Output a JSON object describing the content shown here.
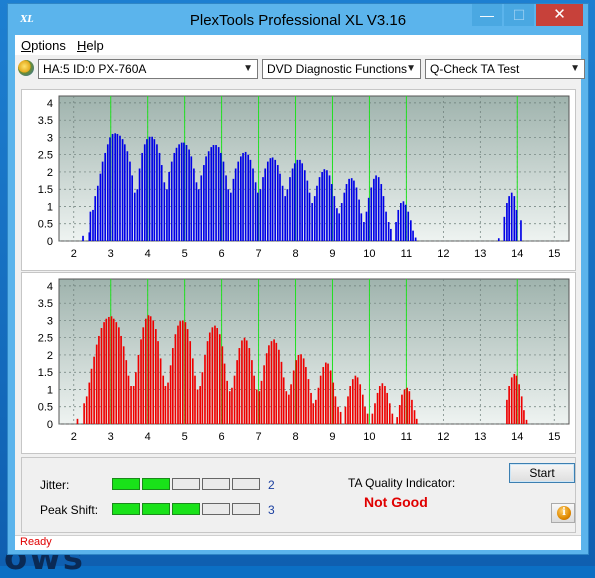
{
  "window": {
    "title": "PlexTools Professional XL V3.16",
    "icon_text": "XL",
    "minimize_glyph": "—",
    "maximize_glyph": "☐",
    "close_glyph": "✕"
  },
  "menu": [
    {
      "label": "Options",
      "accel": "O",
      "rest": "ptions"
    },
    {
      "label": "Help",
      "accel": "H",
      "rest": "elp"
    }
  ],
  "toolbar": {
    "drive": "HA:5 ID:0  PX-760A",
    "function": "DVD Diagnostic Functions",
    "test": "Q-Check TA Test"
  },
  "chart_data": [
    {
      "type": "bar",
      "name": "top",
      "color": "#0000e6",
      "x_ticks": [
        "2",
        "3",
        "4",
        "5",
        "6",
        "7",
        "8",
        "9",
        "10",
        "11",
        "12",
        "13",
        "14",
        "15"
      ],
      "y_ticks": [
        "0",
        "0.5",
        "1",
        "1.5",
        "2",
        "2.5",
        "3",
        "3.5",
        "4"
      ],
      "xlim": [
        1.6,
        15.4
      ],
      "ylim": [
        0,
        4.2
      ],
      "green_lines": [
        3,
        4,
        5,
        6,
        7,
        8,
        9,
        10,
        11,
        14
      ],
      "bars": [
        [
          2.25,
          0.15
        ],
        [
          2.42,
          0.25
        ],
        [
          2.45,
          0.85
        ],
        [
          2.52,
          0.9
        ],
        [
          2.58,
          1.3
        ],
        [
          2.65,
          1.6
        ],
        [
          2.72,
          1.95
        ],
        [
          2.78,
          2.3
        ],
        [
          2.85,
          2.55
        ],
        [
          2.92,
          2.8
        ],
        [
          2.98,
          3.0
        ],
        [
          3.05,
          3.1
        ],
        [
          3.12,
          3.12
        ],
        [
          3.18,
          3.1
        ],
        [
          3.25,
          3.05
        ],
        [
          3.32,
          2.95
        ],
        [
          3.38,
          2.8
        ],
        [
          3.45,
          2.6
        ],
        [
          3.52,
          2.3
        ],
        [
          3.58,
          1.9
        ],
        [
          3.65,
          1.4
        ],
        [
          3.72,
          1.5
        ],
        [
          3.78,
          2.1
        ],
        [
          3.85,
          2.55
        ],
        [
          3.92,
          2.8
        ],
        [
          3.98,
          2.95
        ],
        [
          4.05,
          3.02
        ],
        [
          4.12,
          3.02
        ],
        [
          4.18,
          2.95
        ],
        [
          4.25,
          2.8
        ],
        [
          4.32,
          2.55
        ],
        [
          4.38,
          2.2
        ],
        [
          4.45,
          1.7
        ],
        [
          4.52,
          1.5
        ],
        [
          4.58,
          2.0
        ],
        [
          4.65,
          2.3
        ],
        [
          4.72,
          2.55
        ],
        [
          4.78,
          2.7
        ],
        [
          4.85,
          2.8
        ],
        [
          4.92,
          2.85
        ],
        [
          4.98,
          2.85
        ],
        [
          5.05,
          2.78
        ],
        [
          5.12,
          2.65
        ],
        [
          5.18,
          2.45
        ],
        [
          5.25,
          2.1
        ],
        [
          5.32,
          1.7
        ],
        [
          5.38,
          1.5
        ],
        [
          5.45,
          1.9
        ],
        [
          5.52,
          2.2
        ],
        [
          5.58,
          2.45
        ],
        [
          5.65,
          2.6
        ],
        [
          5.72,
          2.72
        ],
        [
          5.78,
          2.78
        ],
        [
          5.85,
          2.78
        ],
        [
          5.92,
          2.72
        ],
        [
          5.98,
          2.55
        ],
        [
          6.05,
          2.3
        ],
        [
          6.12,
          1.9
        ],
        [
          6.18,
          1.5
        ],
        [
          6.25,
          1.4
        ],
        [
          6.32,
          1.8
        ],
        [
          6.38,
          2.1
        ],
        [
          6.45,
          2.3
        ],
        [
          6.52,
          2.45
        ],
        [
          6.58,
          2.55
        ],
        [
          6.65,
          2.58
        ],
        [
          6.72,
          2.5
        ],
        [
          6.78,
          2.35
        ],
        [
          6.85,
          2.1
        ],
        [
          6.92,
          1.7
        ],
        [
          6.98,
          1.4
        ],
        [
          7.05,
          1.5
        ],
        [
          7.12,
          1.85
        ],
        [
          7.18,
          2.1
        ],
        [
          7.25,
          2.3
        ],
        [
          7.32,
          2.4
        ],
        [
          7.38,
          2.42
        ],
        [
          7.45,
          2.35
        ],
        [
          7.52,
          2.2
        ],
        [
          7.58,
          1.95
        ],
        [
          7.65,
          1.6
        ],
        [
          7.72,
          1.3
        ],
        [
          7.78,
          1.5
        ],
        [
          7.85,
          1.85
        ],
        [
          7.92,
          2.1
        ],
        [
          7.98,
          2.25
        ],
        [
          8.05,
          2.35
        ],
        [
          8.12,
          2.35
        ],
        [
          8.18,
          2.25
        ],
        [
          8.25,
          2.05
        ],
        [
          8.32,
          1.75
        ],
        [
          8.38,
          1.4
        ],
        [
          8.45,
          1.1
        ],
        [
          8.52,
          1.3
        ],
        [
          8.58,
          1.6
        ],
        [
          8.65,
          1.85
        ],
        [
          8.72,
          2.0
        ],
        [
          8.78,
          2.08
        ],
        [
          8.85,
          2.05
        ],
        [
          8.92,
          1.9
        ],
        [
          8.98,
          1.65
        ],
        [
          9.05,
          1.3
        ],
        [
          9.12,
          0.95
        ],
        [
          9.18,
          0.8
        ],
        [
          9.25,
          1.1
        ],
        [
          9.32,
          1.4
        ],
        [
          9.38,
          1.65
        ],
        [
          9.45,
          1.8
        ],
        [
          9.52,
          1.82
        ],
        [
          9.58,
          1.75
        ],
        [
          9.65,
          1.55
        ],
        [
          9.72,
          1.2
        ],
        [
          9.78,
          0.8
        ],
        [
          9.85,
          0.55
        ],
        [
          9.92,
          0.85
        ],
        [
          9.98,
          1.25
        ],
        [
          10.05,
          1.55
        ],
        [
          10.12,
          1.8
        ],
        [
          10.18,
          1.9
        ],
        [
          10.25,
          1.85
        ],
        [
          10.32,
          1.65
        ],
        [
          10.38,
          1.3
        ],
        [
          10.45,
          0.85
        ],
        [
          10.52,
          0.55
        ],
        [
          10.58,
          0.35
        ],
        [
          10.72,
          0.55
        ],
        [
          10.78,
          0.9
        ],
        [
          10.85,
          1.1
        ],
        [
          10.92,
          1.15
        ],
        [
          10.98,
          1.05
        ],
        [
          11.05,
          0.85
        ],
        [
          11.12,
          0.6
        ],
        [
          11.18,
          0.3
        ],
        [
          11.25,
          0.1
        ],
        [
          13.5,
          0.08
        ],
        [
          13.65,
          0.7
        ],
        [
          13.72,
          1.1
        ],
        [
          13.78,
          1.3
        ],
        [
          13.85,
          1.4
        ],
        [
          13.92,
          1.3
        ],
        [
          13.98,
          0.9
        ],
        [
          14.1,
          0.6
        ]
      ]
    },
    {
      "type": "bar",
      "name": "bottom",
      "color": "#ee0000",
      "x_ticks": [
        "2",
        "3",
        "4",
        "5",
        "6",
        "7",
        "8",
        "9",
        "10",
        "11",
        "12",
        "13",
        "14",
        "15"
      ],
      "y_ticks": [
        "0",
        "0.5",
        "1",
        "1.5",
        "2",
        "2.5",
        "3",
        "3.5",
        "4"
      ],
      "xlim": [
        1.6,
        15.4
      ],
      "ylim": [
        0,
        4.2
      ],
      "green_lines": [
        3,
        4,
        5,
        6,
        7,
        8,
        9,
        10,
        11,
        14
      ],
      "bars": [
        [
          2.1,
          0.15
        ],
        [
          2.28,
          0.6
        ],
        [
          2.35,
          0.8
        ],
        [
          2.42,
          1.2
        ],
        [
          2.48,
          1.6
        ],
        [
          2.55,
          1.95
        ],
        [
          2.62,
          2.3
        ],
        [
          2.68,
          2.55
        ],
        [
          2.75,
          2.78
        ],
        [
          2.82,
          2.95
        ],
        [
          2.88,
          3.05
        ],
        [
          2.95,
          3.1
        ],
        [
          3.02,
          3.12
        ],
        [
          3.08,
          3.05
        ],
        [
          3.15,
          2.95
        ],
        [
          3.22,
          2.8
        ],
        [
          3.28,
          2.55
        ],
        [
          3.35,
          2.25
        ],
        [
          3.42,
          1.85
        ],
        [
          3.48,
          1.4
        ],
        [
          3.55,
          1.1
        ],
        [
          3.62,
          1.1
        ],
        [
          3.68,
          1.5
        ],
        [
          3.75,
          2.0
        ],
        [
          3.82,
          2.45
        ],
        [
          3.88,
          2.8
        ],
        [
          3.95,
          3.05
        ],
        [
          4.02,
          3.15
        ],
        [
          4.08,
          3.12
        ],
        [
          4.15,
          3.0
        ],
        [
          4.22,
          2.75
        ],
        [
          4.28,
          2.4
        ],
        [
          4.35,
          1.9
        ],
        [
          4.42,
          1.4
        ],
        [
          4.48,
          1.1
        ],
        [
          4.55,
          1.2
        ],
        [
          4.62,
          1.7
        ],
        [
          4.68,
          2.2
        ],
        [
          4.75,
          2.6
        ],
        [
          4.82,
          2.85
        ],
        [
          4.88,
          2.98
        ],
        [
          4.95,
          3.0
        ],
        [
          5.02,
          2.95
        ],
        [
          5.08,
          2.75
        ],
        [
          5.15,
          2.4
        ],
        [
          5.22,
          1.9
        ],
        [
          5.28,
          1.4
        ],
        [
          5.35,
          1.0
        ],
        [
          5.42,
          1.1
        ],
        [
          5.48,
          1.5
        ],
        [
          5.55,
          2.0
        ],
        [
          5.62,
          2.4
        ],
        [
          5.68,
          2.65
        ],
        [
          5.75,
          2.8
        ],
        [
          5.82,
          2.85
        ],
        [
          5.88,
          2.78
        ],
        [
          5.95,
          2.6
        ],
        [
          6.02,
          2.25
        ],
        [
          6.08,
          1.75
        ],
        [
          6.15,
          1.25
        ],
        [
          6.22,
          0.95
        ],
        [
          6.28,
          1.05
        ],
        [
          6.35,
          1.4
        ],
        [
          6.42,
          1.85
        ],
        [
          6.48,
          2.2
        ],
        [
          6.55,
          2.42
        ],
        [
          6.62,
          2.5
        ],
        [
          6.68,
          2.42
        ],
        [
          6.75,
          2.2
        ],
        [
          6.82,
          1.85
        ],
        [
          6.88,
          1.4
        ],
        [
          6.95,
          1.0
        ],
        [
          7.02,
          0.95
        ],
        [
          7.08,
          1.25
        ],
        [
          7.15,
          1.7
        ],
        [
          7.22,
          2.05
        ],
        [
          7.28,
          2.28
        ],
        [
          7.35,
          2.4
        ],
        [
          7.42,
          2.45
        ],
        [
          7.48,
          2.35
        ],
        [
          7.55,
          2.15
        ],
        [
          7.62,
          1.8
        ],
        [
          7.68,
          1.35
        ],
        [
          7.75,
          0.95
        ],
        [
          7.82,
          0.85
        ],
        [
          7.88,
          1.15
        ],
        [
          7.95,
          1.55
        ],
        [
          8.02,
          1.85
        ],
        [
          8.08,
          2.0
        ],
        [
          8.15,
          2.02
        ],
        [
          8.22,
          1.9
        ],
        [
          8.28,
          1.65
        ],
        [
          8.35,
          1.3
        ],
        [
          8.42,
          0.9
        ],
        [
          8.48,
          0.6
        ],
        [
          8.55,
          0.7
        ],
        [
          8.62,
          1.05
        ],
        [
          8.68,
          1.4
        ],
        [
          8.75,
          1.65
        ],
        [
          8.82,
          1.78
        ],
        [
          8.88,
          1.75
        ],
        [
          8.95,
          1.55
        ],
        [
          9.02,
          1.2
        ],
        [
          9.08,
          0.8
        ],
        [
          9.15,
          0.5
        ],
        [
          9.22,
          0.35
        ],
        [
          9.35,
          0.5
        ],
        [
          9.42,
          0.8
        ],
        [
          9.48,
          1.1
        ],
        [
          9.55,
          1.3
        ],
        [
          9.62,
          1.4
        ],
        [
          9.68,
          1.35
        ],
        [
          9.75,
          1.15
        ],
        [
          9.82,
          0.85
        ],
        [
          9.88,
          0.5
        ],
        [
          9.95,
          0.3
        ],
        [
          10.08,
          0.3
        ],
        [
          10.15,
          0.6
        ],
        [
          10.22,
          0.9
        ],
        [
          10.28,
          1.1
        ],
        [
          10.35,
          1.18
        ],
        [
          10.42,
          1.1
        ],
        [
          10.48,
          0.9
        ],
        [
          10.55,
          0.6
        ],
        [
          10.62,
          0.3
        ],
        [
          10.75,
          0.2
        ],
        [
          10.82,
          0.55
        ],
        [
          10.88,
          0.85
        ],
        [
          10.95,
          1.0
        ],
        [
          11.02,
          1.05
        ],
        [
          11.08,
          0.95
        ],
        [
          11.15,
          0.7
        ],
        [
          11.22,
          0.4
        ],
        [
          11.28,
          0.15
        ],
        [
          13.72,
          0.7
        ],
        [
          13.78,
          1.1
        ],
        [
          13.85,
          1.35
        ],
        [
          13.92,
          1.45
        ],
        [
          13.98,
          1.4
        ],
        [
          14.05,
          1.15
        ],
        [
          14.12,
          0.8
        ],
        [
          14.18,
          0.4
        ],
        [
          14.25,
          0.12
        ]
      ]
    }
  ],
  "metrics": {
    "jitter": {
      "label": "Jitter:",
      "value": "2",
      "segments": 5,
      "filled": 2
    },
    "peak_shift": {
      "label": "Peak Shift:",
      "value": "3",
      "segments": 5,
      "filled": 3
    }
  },
  "ta_quality": {
    "label": "TA Quality Indicator:",
    "value": "Not Good"
  },
  "buttons": {
    "start": "Start",
    "info_glyph": "i"
  },
  "status": "Ready",
  "desktop_text": "ows"
}
